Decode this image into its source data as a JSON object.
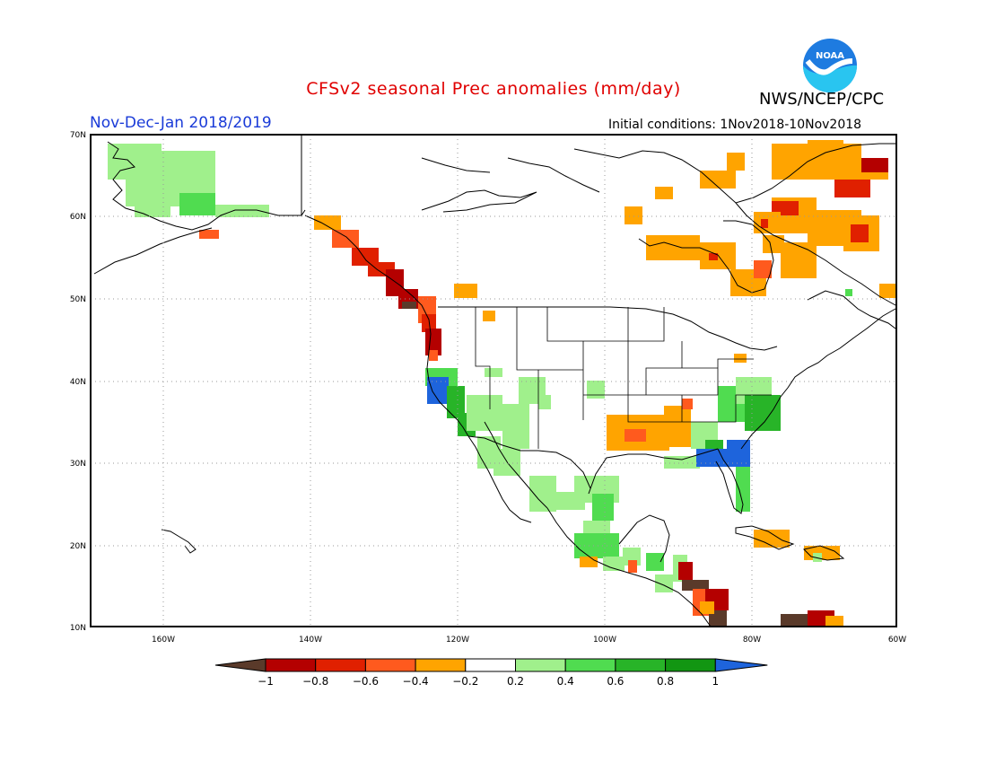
{
  "header": {
    "title": "CFSv2 seasonal Prec anomalies (mm/day)",
    "agency": "NWS/NCEP/CPC",
    "period": "Nov-Dec-Jan 2018/2019",
    "initial_conditions": "Initial conditions: 1Nov2018-10Nov2018",
    "logo_text": "NOAA"
  },
  "map": {
    "lon_labels": [
      "160W",
      "140W",
      "120W",
      "100W",
      "80W",
      "60W"
    ],
    "lat_labels": [
      "70N",
      "60N",
      "50N",
      "40N",
      "30N",
      "20N",
      "10N"
    ],
    "grid": "dotted"
  },
  "colorbar": {
    "labels": [
      "−1",
      "−0.8",
      "−0.6",
      "−0.4",
      "−0.2",
      "0.2",
      "0.4",
      "0.6",
      "0.8",
      "1"
    ],
    "colors": [
      "#5a3a2a",
      "#b40000",
      "#e02000",
      "#ff5a1e",
      "#ffa400",
      "#ffffff",
      "#a0f08c",
      "#50dc50",
      "#28b428",
      "#129612",
      "#1e64dc"
    ]
  },
  "anomaly_colors": {
    "dry_strong": "#5a3a2a",
    "dry_3": "#b40000",
    "dry_2": "#e02000",
    "dry_1": "#ff5a1e",
    "dry_0": "#ffa400",
    "wet_0": "#a0f08c",
    "wet_1": "#50dc50",
    "wet_2": "#28b428",
    "wet_3": "#129612",
    "wet_strong": "#1e64dc"
  }
}
